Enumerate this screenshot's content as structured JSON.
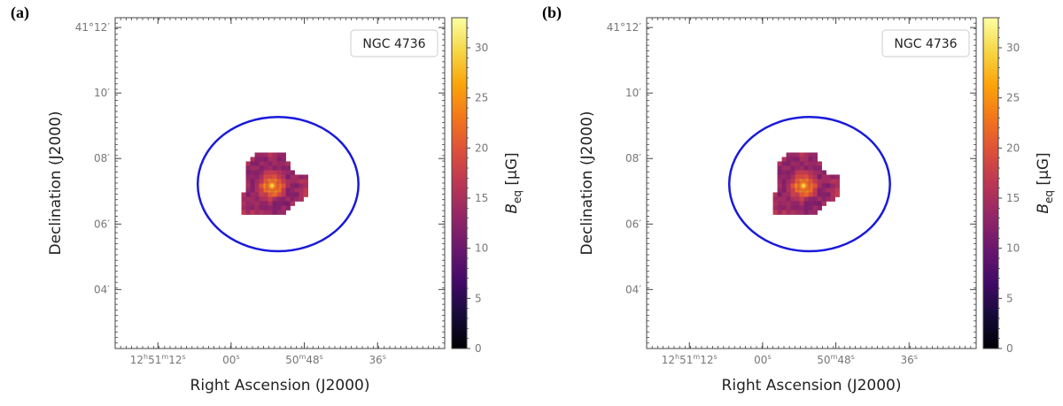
{
  "chart_data": [
    {
      "type": "heatmap",
      "panel_label": "(a)",
      "title": "NGC 4736",
      "xlabel": "Right Ascension (J2000)",
      "ylabel": "Declination (J2000)",
      "x_ticks": [
        {
          "label": "12h51m12s",
          "ra_sec": 72
        },
        {
          "label": "00s",
          "ra_sec": 60
        },
        {
          "label": "50m48s",
          "ra_sec": 48
        },
        {
          "label": "36s",
          "ra_sec": 36
        }
      ],
      "x_tick_parts": [
        [
          [
            "12",
            "h"
          ],
          [
            "51",
            "m"
          ],
          [
            "12",
            "s"
          ]
        ],
        [
          [
            "00",
            "s"
          ]
        ],
        [
          [
            "50",
            "m"
          ],
          [
            "48",
            "s"
          ]
        ],
        [
          [
            "36",
            "s"
          ]
        ]
      ],
      "y_ticks": [
        {
          "label": "41°12′",
          "dec_arcmin": 12,
          "deg": "41°",
          "min": "12′"
        },
        {
          "label": "10′",
          "dec_arcmin": 10,
          "min": "10′"
        },
        {
          "label": "08′",
          "dec_arcmin": 8,
          "min": "08′"
        },
        {
          "label": "06′",
          "dec_arcmin": 6,
          "min": "06′"
        },
        {
          "label": "04′",
          "dec_arcmin": 4,
          "min": "04′"
        }
      ],
      "xlim_ra_sec": [
        79,
        25
      ],
      "ylim_dec_arcmin": [
        2.2,
        12.3
      ],
      "ellipse": {
        "center_ra_sec": 52.3,
        "center_dec_arcmin": 7.22,
        "semi_width_arcmin": 2.45,
        "semi_height_arcmin": 2.05,
        "color": "#1a1adb"
      },
      "source_center": {
        "ra_sec": 53.3,
        "dec_arcmin": 7.17
      },
      "colorbar": {
        "label": "B_eq [μG]",
        "label_main": "B",
        "label_sub": "eq",
        "label_unit": " [μG]",
        "min": 0,
        "max": 33,
        "ticks": [
          0,
          5,
          10,
          15,
          20,
          25,
          30
        ],
        "colormap": "inferno-like"
      }
    },
    {
      "type": "heatmap",
      "panel_label": "(b)",
      "title": "NGC 4736",
      "xlabel": "Right Ascension (J2000)",
      "ylabel": "Declination (J2000)",
      "x_ticks": [
        {
          "label": "12h51m12s",
          "ra_sec": 72
        },
        {
          "label": "00s",
          "ra_sec": 60
        },
        {
          "label": "50m48s",
          "ra_sec": 48
        },
        {
          "label": "36s",
          "ra_sec": 36
        }
      ],
      "x_tick_parts": [
        [
          [
            "12",
            "h"
          ],
          [
            "51",
            "m"
          ],
          [
            "12",
            "s"
          ]
        ],
        [
          [
            "00",
            "s"
          ]
        ],
        [
          [
            "50",
            "m"
          ],
          [
            "48",
            "s"
          ]
        ],
        [
          [
            "36",
            "s"
          ]
        ]
      ],
      "y_ticks": [
        {
          "label": "41°12′",
          "dec_arcmin": 12,
          "deg": "41°",
          "min": "12′"
        },
        {
          "label": "10′",
          "dec_arcmin": 10,
          "min": "10′"
        },
        {
          "label": "08′",
          "dec_arcmin": 8,
          "min": "08′"
        },
        {
          "label": "06′",
          "dec_arcmin": 6,
          "min": "06′"
        },
        {
          "label": "04′",
          "dec_arcmin": 4,
          "min": "04′"
        }
      ],
      "xlim_ra_sec": [
        79,
        25
      ],
      "ylim_dec_arcmin": [
        2.2,
        12.3
      ],
      "ellipse": {
        "center_ra_sec": 52.3,
        "center_dec_arcmin": 7.22,
        "semi_width_arcmin": 2.45,
        "semi_height_arcmin": 2.05,
        "color": "#1a1adb"
      },
      "source_center": {
        "ra_sec": 53.3,
        "dec_arcmin": 7.17
      },
      "colorbar": {
        "label": "B_eq [μG]",
        "label_main": "B",
        "label_sub": "eq",
        "label_unit": " [μG]",
        "min": 0,
        "max": 33,
        "ticks": [
          0,
          5,
          10,
          15,
          20,
          25,
          30
        ],
        "colormap": "inferno-like"
      }
    }
  ]
}
